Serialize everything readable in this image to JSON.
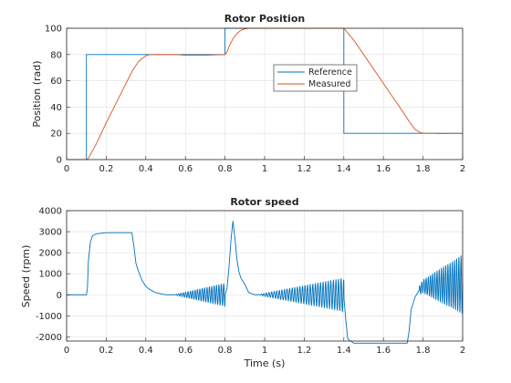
{
  "chart_data": [
    {
      "type": "line",
      "title": "Rotor Position",
      "xlabel": "",
      "ylabel": "Position (rad)",
      "xlim": [
        0,
        2
      ],
      "ylim": [
        0,
        100
      ],
      "xticks": [
        0,
        0.2,
        0.4,
        0.6,
        0.8,
        1,
        1.2,
        1.4,
        1.6,
        1.8,
        2
      ],
      "yticks": [
        0,
        20,
        40,
        60,
        80,
        100
      ],
      "grid": true,
      "legend_position": "upper-right-inside",
      "series": [
        {
          "name": "Reference",
          "color": "#0072bd",
          "x": [
            0,
            0.1,
            0.1,
            0.8,
            0.8,
            1.4,
            1.4,
            2.0
          ],
          "y": [
            0,
            0,
            80,
            80,
            100,
            100,
            20,
            20
          ]
        },
        {
          "name": "Measured",
          "color": "#d95319",
          "x": [
            0,
            0.1,
            0.11,
            0.15,
            0.2,
            0.25,
            0.3,
            0.33,
            0.36,
            0.38,
            0.4,
            0.42,
            0.45,
            0.5,
            0.55,
            0.6,
            0.7,
            0.8,
            0.81,
            0.82,
            0.84,
            0.86,
            0.88,
            0.9,
            0.92,
            0.95,
            1.0,
            1.1,
            1.2,
            1.3,
            1.4,
            1.45,
            1.5,
            1.55,
            1.6,
            1.65,
            1.7,
            1.73,
            1.76,
            1.78,
            1.8,
            1.85,
            1.9,
            1.95,
            2.0
          ],
          "y": [
            0,
            0,
            1,
            12,
            28,
            43,
            58,
            67,
            74,
            77,
            79,
            80,
            80,
            80,
            80,
            79.5,
            79.5,
            80,
            82,
            86,
            92,
            96,
            98.5,
            99.5,
            100,
            100,
            100,
            100,
            100,
            100,
            100,
            91,
            80,
            69,
            58,
            47,
            36,
            29,
            23,
            21,
            20,
            20,
            19.8,
            20,
            19.9
          ]
        }
      ]
    },
    {
      "type": "line",
      "title": "Rotor speed",
      "xlabel": "Time (s)",
      "ylabel": "Speed (rpm)",
      "xlim": [
        0,
        2
      ],
      "ylim": [
        -2200,
        4000
      ],
      "xticks": [
        0,
        0.2,
        0.4,
        0.6,
        0.8,
        1,
        1.2,
        1.4,
        1.6,
        1.8,
        2
      ],
      "yticks": [
        -2000,
        -1000,
        0,
        1000,
        2000,
        3000,
        4000
      ],
      "grid": true,
      "series": [
        {
          "color": "#0072bd",
          "x": [
            0,
            0.1,
            0.105,
            0.11,
            0.12,
            0.13,
            0.15,
            0.2,
            0.25,
            0.3,
            0.33,
            0.34,
            0.35,
            0.36,
            0.38,
            0.4,
            0.42,
            0.45,
            0.5,
            0.55,
            0.8,
            0.81,
            0.82,
            0.83,
            0.84,
            0.85,
            0.86,
            0.87,
            0.88,
            0.89,
            0.9,
            0.92,
            0.95,
            1.0,
            1.39,
            1.4,
            1.41,
            1.42,
            1.45,
            1.5,
            1.6,
            1.7,
            1.72,
            1.73,
            1.74,
            1.76,
            1.78,
            1.8,
            2.0
          ],
          "y": [
            0,
            0,
            300,
            1600,
            2500,
            2800,
            2900,
            2950,
            2950,
            2950,
            2950,
            2300,
            1500,
            1200,
            700,
            400,
            250,
            100,
            0,
            0,
            0,
            300,
            1300,
            2600,
            3500,
            2700,
            1700,
            1100,
            800,
            650,
            500,
            100,
            0,
            0,
            0,
            -100,
            -1200,
            -2100,
            -2300,
            -2300,
            -2300,
            -2300,
            -2300,
            -1700,
            -700,
            -100,
            200,
            400,
            500
          ],
          "oscillations": [
            {
              "x_start": 0.55,
              "x_end": 0.8,
              "amp_start": 20,
              "amp_end": 550,
              "period": 0.012
            },
            {
              "x_start": 0.98,
              "x_end": 1.4,
              "amp_start": 40,
              "amp_end": 800,
              "period": 0.013
            },
            {
              "x_start": 1.78,
              "x_end": 2.0,
              "amp_start": 200,
              "amp_end": 1400,
              "period": 0.011
            }
          ]
        }
      ]
    }
  ]
}
